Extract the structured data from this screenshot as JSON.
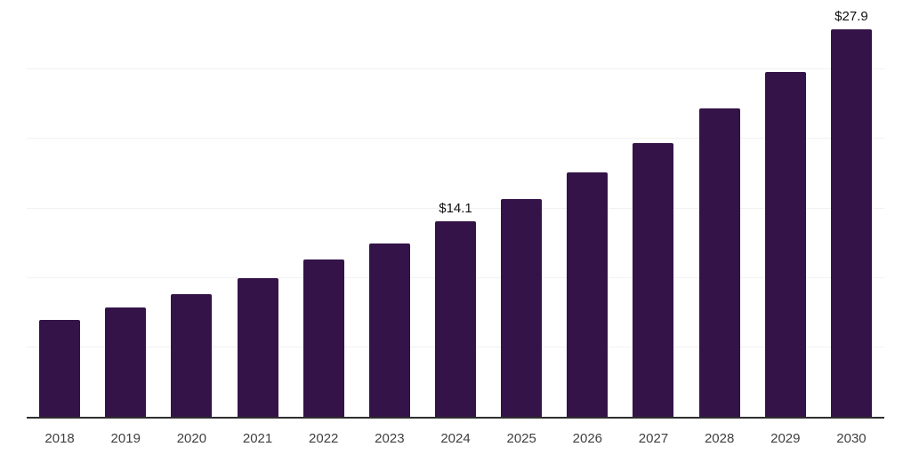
{
  "chart_data": {
    "type": "bar",
    "title": "",
    "xlabel": "",
    "ylabel": "",
    "categories": [
      "2018",
      "2019",
      "2020",
      "2021",
      "2022",
      "2023",
      "2024",
      "2025",
      "2026",
      "2027",
      "2028",
      "2029",
      "2030"
    ],
    "values": [
      7.0,
      7.9,
      8.8,
      10.0,
      11.3,
      12.5,
      14.1,
      15.7,
      17.6,
      19.7,
      22.2,
      24.8,
      27.9
    ],
    "data_labels": [
      {
        "category": "2024",
        "index": 6,
        "text": "$14.1"
      },
      {
        "category": "2030",
        "index": 12,
        "text": "$27.9"
      }
    ],
    "value_prefix": "$",
    "ylim": [
      0,
      30
    ],
    "gridline_step": 5,
    "grid": "horizontal",
    "legend_position": "none",
    "bar_color": "#341348",
    "background_color": "#ffffff",
    "axis_line_color": "#2e2e2e",
    "gridline_color": "#f2f2f2",
    "tick_label_color": "#404040",
    "data_label_color": "#111111"
  }
}
